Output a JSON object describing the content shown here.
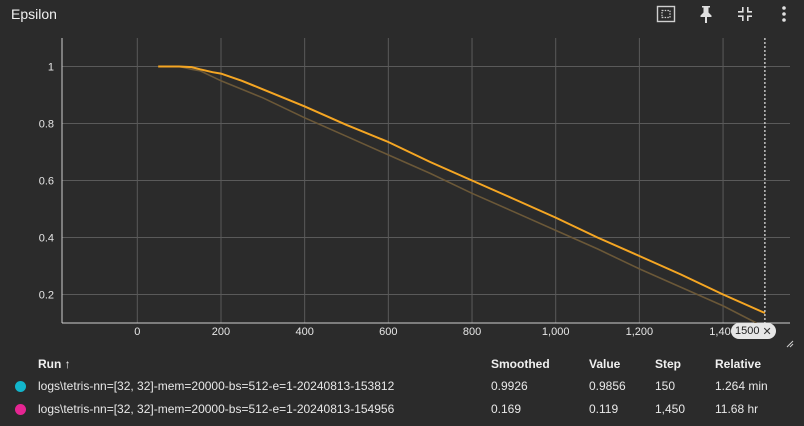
{
  "card": {
    "title": "Epsilon"
  },
  "toolbar": {
    "icons": [
      "fit-domain-icon",
      "pin-icon",
      "fullscreen-exit-icon",
      "more-vert-icon"
    ]
  },
  "colors": {
    "background": "#2b2b2b",
    "grid": "#5a5a5a",
    "series_orange": "#f5a623",
    "series_faint": "#6b5838",
    "run1_dot": "#12b5cb",
    "run2_dot": "#e52592"
  },
  "chart_data": {
    "type": "line",
    "x_tick_labels": [
      "0",
      "200",
      "400",
      "600",
      "800",
      "1,000",
      "1,200",
      "1,400"
    ],
    "x_ticks": [
      0,
      200,
      400,
      600,
      800,
      1000,
      1200,
      1400
    ],
    "y_tick_labels": [
      "0.2",
      "0.4",
      "0.6",
      "0.8",
      "1"
    ],
    "y_ticks": [
      0.2,
      0.4,
      0.6,
      0.8,
      1.0
    ],
    "xlim": [
      -180,
      1560
    ],
    "ylim": [
      0.1,
      1.1
    ],
    "grid": true,
    "series": [
      {
        "color": "#f5a623",
        "x": [
          50,
          100,
          130,
          150,
          180,
          200,
          250,
          300,
          400,
          500,
          600,
          700,
          800,
          900,
          1000,
          1100,
          1200,
          1300,
          1400,
          1500
        ],
        "y": [
          1.0,
          1.0,
          0.998,
          0.99,
          0.98,
          0.975,
          0.95,
          0.92,
          0.86,
          0.795,
          0.735,
          0.665,
          0.6,
          0.535,
          0.47,
          0.4,
          0.335,
          0.27,
          0.2,
          0.135
        ]
      },
      {
        "color": "#6b5838",
        "x": [
          50,
          100,
          130,
          150,
          200,
          300,
          400,
          500,
          600,
          700,
          800,
          900,
          1000,
          1100,
          1200,
          1300,
          1400,
          1480
        ],
        "y": [
          1.0,
          1.0,
          0.99,
          0.985,
          0.95,
          0.89,
          0.82,
          0.755,
          0.69,
          0.625,
          0.555,
          0.49,
          0.425,
          0.36,
          0.29,
          0.225,
          0.16,
          0.1
        ]
      }
    ],
    "cursor_step": 1500,
    "cursor_label": "1500"
  },
  "table": {
    "headers": {
      "run": "Run ↑",
      "smoothed": "Smoothed",
      "value": "Value",
      "step": "Step",
      "relative": "Relative"
    },
    "rows": [
      {
        "run": "logs\\tetris-nn=[32, 32]-mem=20000-bs=512-e=1-20240813-153812",
        "smoothed": "0.9926",
        "value": "0.9856",
        "step": "150",
        "relative": "1.264 min",
        "color": "#12b5cb"
      },
      {
        "run": "logs\\tetris-nn=[32, 32]-mem=20000-bs=512-e=1-20240813-154956",
        "smoothed": "0.169",
        "value": "0.119",
        "step": "1,450",
        "relative": "11.68 hr",
        "color": "#e52592"
      }
    ]
  }
}
